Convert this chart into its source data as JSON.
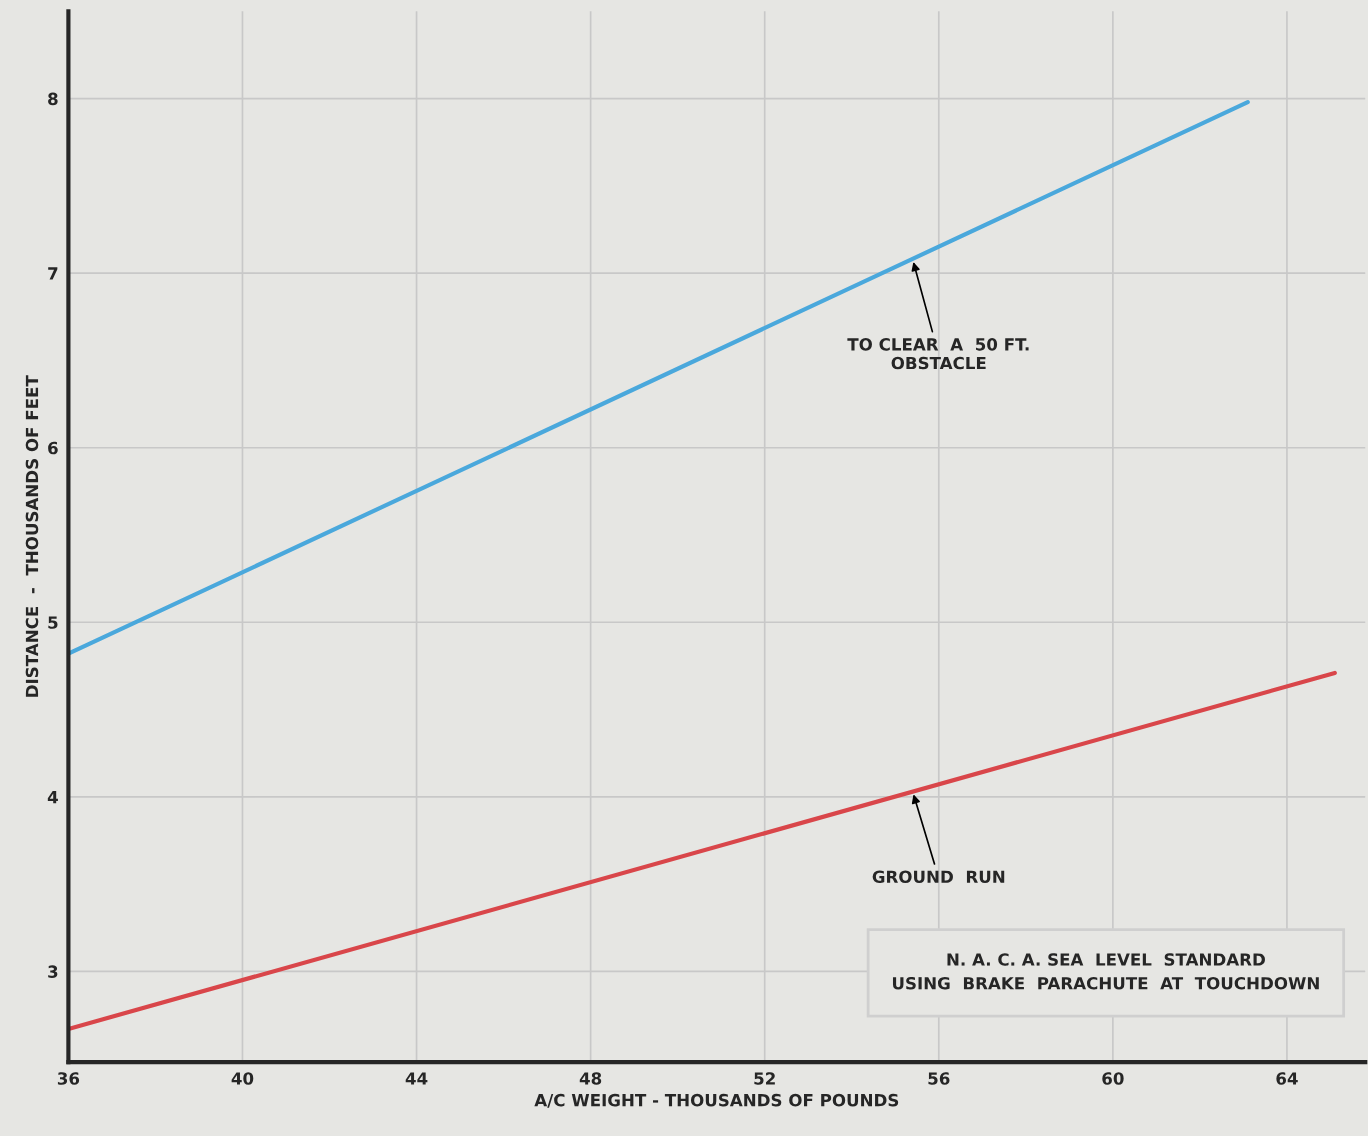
{
  "chart_data": {
    "type": "line",
    "xlabel": "A/C WEIGHT - THOUSANDS OF POUNDS",
    "ylabel": "DISTANCE  -  THOUSANDS OF FEET",
    "series": [
      {
        "color": "#4aa8dc",
        "x": [
          36,
          63.1
        ],
        "values": [
          4.82,
          7.98
        ]
      },
      {
        "color": "#d9464a",
        "x": [
          36,
          65.1
        ],
        "values": [
          2.67,
          4.71
        ]
      }
    ],
    "xlim": [
      36,
      65.8
    ],
    "ylim": [
      2.48,
      8.5
    ],
    "xticks": [
      36,
      40,
      44,
      48,
      52,
      56,
      60,
      64
    ],
    "yticks": [
      3,
      4,
      5,
      6,
      7,
      8
    ],
    "grid": true,
    "annotations": [
      {
        "text": "TO CLEAR  A  50 FT.\nOBSTACLE",
        "x": 55.4,
        "y": 7.08
      },
      {
        "text": "GROUND  RUN",
        "x": 55.4,
        "y": 4.03
      },
      "N. A. C. A. SEA  LEVEL  STANDARD\nUSING  BRAKE  PARACHUTE  AT  TOUCHDOWN"
    ]
  }
}
